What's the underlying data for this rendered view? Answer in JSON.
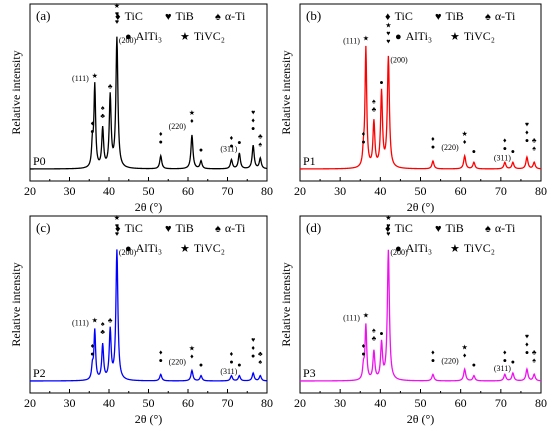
{
  "chart_data": [
    {
      "type": "line",
      "panel_label": "(a)",
      "sample_label": "P0",
      "color": "#000000",
      "xlabel": "2θ (°)",
      "ylabel": "Relative intensity",
      "xlim": [
        20,
        80
      ],
      "xticks": [
        "20",
        "30",
        "40",
        "50",
        "60",
        "70",
        "80"
      ],
      "legend": [
        {
          "symbol": "♦",
          "label": "TiC"
        },
        {
          "symbol": "♥",
          "label": "TiB"
        },
        {
          "symbol": "♠",
          "label": "α-Ti"
        },
        {
          "symbol": "●",
          "label": "AlTi₃"
        },
        {
          "symbol": "★",
          "label": "TiVC₂"
        }
      ],
      "peaks": [
        {
          "x": 35.8,
          "y": 0.18,
          "w": 0.25,
          "markers": "♦●"
        },
        {
          "x": 36.4,
          "y": 0.63,
          "w": 0.25,
          "markers": "★",
          "label": "(111)"
        },
        {
          "x": 38.4,
          "y": 0.3,
          "w": 0.28,
          "markers": "♠♣"
        },
        {
          "x": 40.3,
          "y": 0.55,
          "w": 0.28,
          "markers": "♣"
        },
        {
          "x": 42.0,
          "y": 1.0,
          "w": 0.3,
          "markers": "★♥♥",
          "label": "(200)"
        },
        {
          "x": 53.1,
          "y": 0.1,
          "w": 0.3,
          "markers": "♦●"
        },
        {
          "x": 61.0,
          "y": 0.26,
          "w": 0.3,
          "markers": "★♦",
          "label": "(220)"
        },
        {
          "x": 63.3,
          "y": 0.06,
          "w": 0.3,
          "markers": "●"
        },
        {
          "x": 71.0,
          "y": 0.07,
          "w": 0.3,
          "markers": "♦●"
        },
        {
          "x": 73.0,
          "y": 0.12,
          "w": 0.3,
          "markers": "●",
          "label": "(311)"
        },
        {
          "x": 76.5,
          "y": 0.18,
          "w": 0.3,
          "markers": "♥♦●"
        },
        {
          "x": 78.3,
          "y": 0.08,
          "w": 0.3,
          "markers": "♣♠"
        }
      ]
    },
    {
      "type": "line",
      "panel_label": "(b)",
      "sample_label": "P1",
      "color": "#ff0000",
      "xlabel": "2θ (°)",
      "ylabel": "Relative intensity",
      "xlim": [
        20,
        80
      ],
      "xticks": [
        "20",
        "30",
        "40",
        "50",
        "60",
        "70",
        "80"
      ],
      "legend": [
        {
          "symbol": "♦",
          "label": "TiC"
        },
        {
          "symbol": "♥",
          "label": "TiB"
        },
        {
          "symbol": "♠",
          "label": "α-Ti"
        },
        {
          "symbol": "●",
          "label": "AlTi₃"
        },
        {
          "symbol": "★",
          "label": "TiVC₂"
        }
      ],
      "peaks": [
        {
          "x": 35.8,
          "y": 0.1,
          "w": 0.25,
          "markers": "♦●"
        },
        {
          "x": 36.4,
          "y": 0.92,
          "w": 0.25,
          "markers": "★",
          "label": "(111)"
        },
        {
          "x": 38.4,
          "y": 0.35,
          "w": 0.28,
          "markers": "♠♣"
        },
        {
          "x": 40.3,
          "y": 0.58,
          "w": 0.28,
          "markers": "●"
        },
        {
          "x": 42.0,
          "y": 0.85,
          "w": 0.3,
          "markers": "★♥♥",
          "label": "(200)"
        },
        {
          "x": 53.1,
          "y": 0.06,
          "w": 0.3,
          "markers": "♦●"
        },
        {
          "x": 61.0,
          "y": 0.1,
          "w": 0.3,
          "markers": "★♦",
          "label": "(220)"
        },
        {
          "x": 63.3,
          "y": 0.05,
          "w": 0.3,
          "markers": "●"
        },
        {
          "x": 71.0,
          "y": 0.05,
          "w": 0.3,
          "markers": "♦●"
        },
        {
          "x": 73.0,
          "y": 0.05,
          "w": 0.3,
          "markers": "●",
          "label": "(311)"
        },
        {
          "x": 76.5,
          "y": 0.09,
          "w": 0.3,
          "markers": "♥♦●"
        },
        {
          "x": 78.3,
          "y": 0.05,
          "w": 0.3,
          "markers": "♣♠"
        }
      ]
    },
    {
      "type": "line",
      "panel_label": "(c)",
      "sample_label": "P2",
      "color": "#0000ff",
      "xlabel": "2θ (°)",
      "ylabel": "Relative intensity",
      "xlim": [
        20,
        80
      ],
      "xticks": [
        "20",
        "30",
        "40",
        "50",
        "60",
        "70",
        "80"
      ],
      "legend": [
        {
          "symbol": "♦",
          "label": "TiC"
        },
        {
          "symbol": "♥",
          "label": "TiB"
        },
        {
          "symbol": "♠",
          "label": "α-Ti"
        },
        {
          "symbol": "●",
          "label": "AlTi₃"
        },
        {
          "symbol": "★",
          "label": "TiVC₂"
        }
      ],
      "peaks": [
        {
          "x": 35.8,
          "y": 0.1,
          "w": 0.25,
          "markers": "♦●"
        },
        {
          "x": 36.4,
          "y": 0.38,
          "w": 0.25,
          "markers": "★",
          "label": "(111)"
        },
        {
          "x": 38.4,
          "y": 0.27,
          "w": 0.28,
          "markers": "♠♣"
        },
        {
          "x": 40.3,
          "y": 0.38,
          "w": 0.28,
          "markers": "♣"
        },
        {
          "x": 42.0,
          "y": 1.0,
          "w": 0.3,
          "markers": "★♥♥",
          "label": "(200)"
        },
        {
          "x": 53.1,
          "y": 0.05,
          "w": 0.3,
          "markers": "♦●"
        },
        {
          "x": 61.0,
          "y": 0.08,
          "w": 0.3,
          "markers": "★♦",
          "label": "(220)"
        },
        {
          "x": 63.3,
          "y": 0.04,
          "w": 0.3,
          "markers": "●"
        },
        {
          "x": 71.0,
          "y": 0.04,
          "w": 0.3,
          "markers": "♦●"
        },
        {
          "x": 73.0,
          "y": 0.04,
          "w": 0.3,
          "markers": "●",
          "label": "(311)"
        },
        {
          "x": 76.5,
          "y": 0.06,
          "w": 0.3,
          "markers": "♥♦●"
        },
        {
          "x": 78.3,
          "y": 0.04,
          "w": 0.3,
          "markers": "♣♠"
        }
      ]
    },
    {
      "type": "line",
      "panel_label": "(d)",
      "sample_label": "P3",
      "color": "#ee11ee",
      "xlabel": "2θ (°)",
      "ylabel": "Relative intensity",
      "xlim": [
        20,
        80
      ],
      "xticks": [
        "20",
        "30",
        "40",
        "50",
        "60",
        "70",
        "80"
      ],
      "legend": [
        {
          "symbol": "♦",
          "label": "TiC"
        },
        {
          "symbol": "♥",
          "label": "TiB"
        },
        {
          "symbol": "♠",
          "label": "α-Ti"
        },
        {
          "symbol": "●",
          "label": "AlTi₃"
        },
        {
          "symbol": "★",
          "label": "TiVC₂"
        }
      ],
      "peaks": [
        {
          "x": 35.8,
          "y": 0.1,
          "w": 0.25,
          "markers": "♦●"
        },
        {
          "x": 36.4,
          "y": 0.42,
          "w": 0.25,
          "markers": "★",
          "label": "(111)"
        },
        {
          "x": 38.4,
          "y": 0.22,
          "w": 0.28,
          "markers": "♠♣"
        },
        {
          "x": 40.3,
          "y": 0.28,
          "w": 0.28,
          "markers": "●"
        },
        {
          "x": 42.0,
          "y": 1.0,
          "w": 0.3,
          "markers": "★♥♥",
          "label": "(200)"
        },
        {
          "x": 53.1,
          "y": 0.05,
          "w": 0.3,
          "markers": "♦●"
        },
        {
          "x": 61.0,
          "y": 0.09,
          "w": 0.3,
          "markers": "★♦",
          "label": "(220)"
        },
        {
          "x": 63.3,
          "y": 0.04,
          "w": 0.3,
          "markers": "●"
        },
        {
          "x": 71.0,
          "y": 0.05,
          "w": 0.3,
          "markers": "♦●"
        },
        {
          "x": 73.0,
          "y": 0.06,
          "w": 0.3,
          "markers": "●",
          "label": "(311)"
        },
        {
          "x": 76.5,
          "y": 0.09,
          "w": 0.3,
          "markers": "♥♦●"
        },
        {
          "x": 78.3,
          "y": 0.05,
          "w": 0.3,
          "markers": "♣♠"
        }
      ]
    }
  ]
}
